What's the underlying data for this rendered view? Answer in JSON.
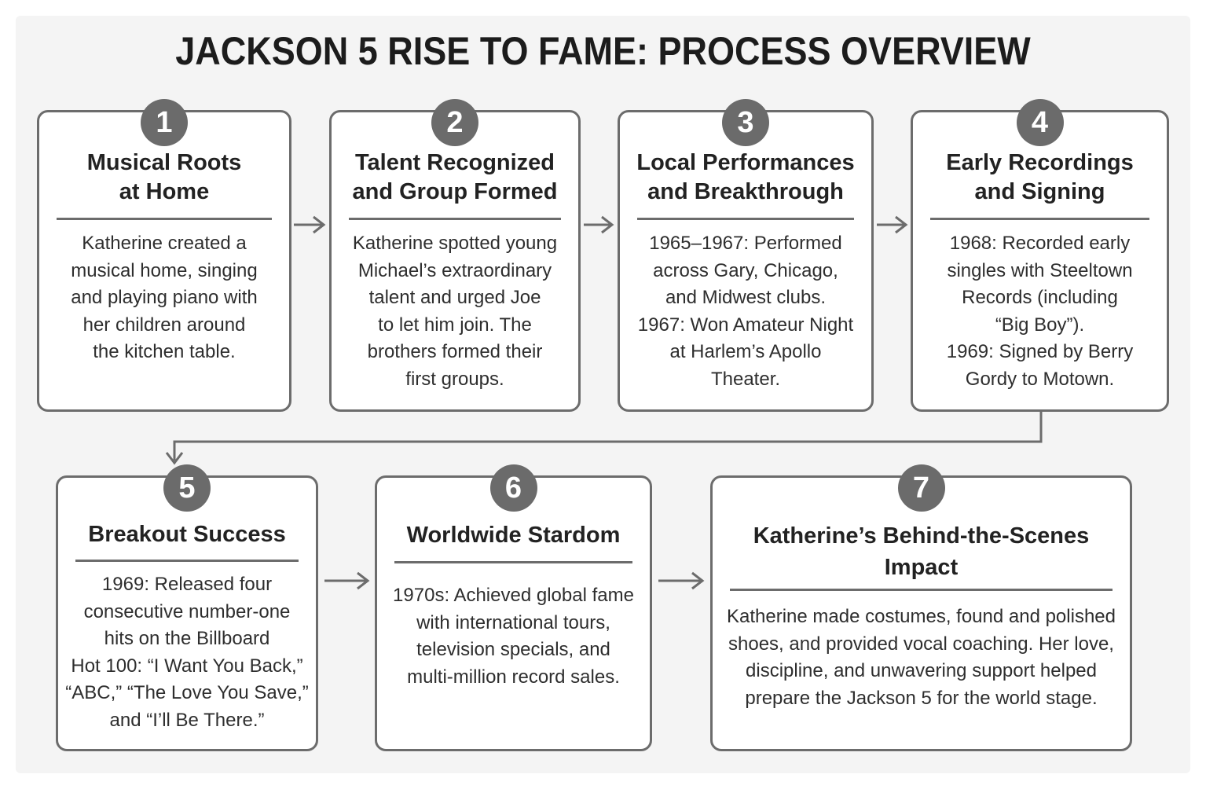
{
  "title": "JACKSON 5 RISE TO FAME: PROCESS OVERVIEW",
  "steps": [
    {
      "number": "1",
      "title": "Musical Roots\nat Home",
      "text": "Katherine created a\nmusical home, singing\nand playing piano with\nher children around\nthe kitchen table."
    },
    {
      "number": "2",
      "title": "Talent Recognized\nand Group Formed",
      "text": "Katherine spotted young\nMichael’s extraordinary\ntalent and urged Joe\nto let him join. The\nbrothers formed their\nfirst groups."
    },
    {
      "number": "3",
      "title": "Local Performances\nand Breakthrough",
      "text": "1965–1967: Performed\nacross Gary, Chicago,\nand Midwest clubs.\n1967: Won Amateur Night\nat Harlem’s Apollo\nTheater."
    },
    {
      "number": "4",
      "title": "Early Recordings\nand Signing",
      "text": "1968: Recorded early\nsingles with Steeltown\nRecords (including\n“Big Boy”).\n1969: Signed by Berry\nGordy to Motown."
    },
    {
      "number": "5",
      "title": "Breakout Success",
      "text": "1969: Released four\nconsecutive number-one\nhits on the Billboard\nHot 100: “I Want You Back,”\n“ABC,” “The Love You Save,”\nand “I’ll Be There.”"
    },
    {
      "number": "6",
      "title": "Worldwide Stardom",
      "text": "1970s: Achieved global fame\nwith international tours,\ntelevision specials, and\nmulti-million record sales."
    },
    {
      "number": "7",
      "title": "Katherine’s Behind-the-Scenes\nImpact",
      "text": "Katherine made costumes, found and polished\nshoes, and provided vocal coaching. Her love,\ndiscipline, and unwavering support helped\nprepare the Jackson 5 for the world stage."
    }
  ],
  "colors": {
    "border": "#6c6c6c",
    "badge": "#6b6b6b",
    "arrow": "#6c6c6c"
  }
}
